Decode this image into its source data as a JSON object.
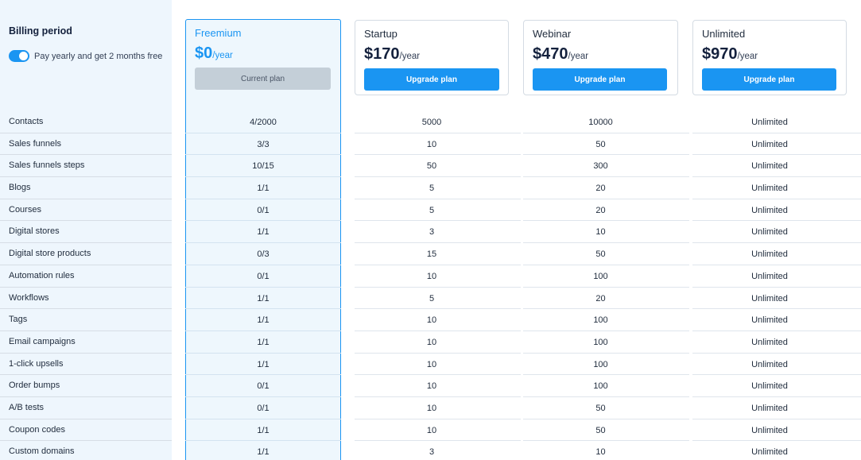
{
  "billing": {
    "title": "Billing period",
    "toggle_label": "Pay yearly and get 2 months free",
    "toggle_on": true
  },
  "plans": [
    {
      "name": "Freemium",
      "price": "$0",
      "period": "/year",
      "button": "Current plan",
      "current": true
    },
    {
      "name": "Startup",
      "price": "$170",
      "period": "/year",
      "button": "Upgrade plan",
      "current": false
    },
    {
      "name": "Webinar",
      "price": "$470",
      "period": "/year",
      "button": "Upgrade plan",
      "current": false
    },
    {
      "name": "Unlimited",
      "price": "$970",
      "period": "/year",
      "button": "Upgrade plan",
      "current": false
    }
  ],
  "features": [
    {
      "label": "Contacts",
      "values": [
        "4/2000",
        "5000",
        "10000",
        "Unlimited"
      ]
    },
    {
      "label": "Sales funnels",
      "values": [
        "3/3",
        "10",
        "50",
        "Unlimited"
      ]
    },
    {
      "label": "Sales funnels steps",
      "values": [
        "10/15",
        "50",
        "300",
        "Unlimited"
      ]
    },
    {
      "label": "Blogs",
      "values": [
        "1/1",
        "5",
        "20",
        "Unlimited"
      ]
    },
    {
      "label": "Courses",
      "values": [
        "0/1",
        "5",
        "20",
        "Unlimited"
      ]
    },
    {
      "label": "Digital stores",
      "values": [
        "1/1",
        "3",
        "10",
        "Unlimited"
      ]
    },
    {
      "label": "Digital store products",
      "values": [
        "0/3",
        "15",
        "50",
        "Unlimited"
      ]
    },
    {
      "label": "Automation rules",
      "values": [
        "0/1",
        "10",
        "100",
        "Unlimited"
      ]
    },
    {
      "label": "Workflows",
      "values": [
        "1/1",
        "5",
        "20",
        "Unlimited"
      ]
    },
    {
      "label": "Tags",
      "values": [
        "1/1",
        "10",
        "100",
        "Unlimited"
      ]
    },
    {
      "label": "Email campaigns",
      "values": [
        "1/1",
        "10",
        "100",
        "Unlimited"
      ]
    },
    {
      "label": "1-click upsells",
      "values": [
        "1/1",
        "10",
        "100",
        "Unlimited"
      ]
    },
    {
      "label": "Order bumps",
      "values": [
        "0/1",
        "10",
        "100",
        "Unlimited"
      ]
    },
    {
      "label": "A/B tests",
      "values": [
        "0/1",
        "10",
        "50",
        "Unlimited"
      ]
    },
    {
      "label": "Coupon codes",
      "values": [
        "1/1",
        "10",
        "50",
        "Unlimited"
      ]
    },
    {
      "label": "Custom domains",
      "values": [
        "1/1",
        "3",
        "10",
        "Unlimited"
      ]
    }
  ],
  "colors": {
    "accent": "#1a95f2",
    "sidebar_bg": "#eef6fd",
    "current_bg": "#eef7fd",
    "disabled_button": "#c4cfd8"
  }
}
